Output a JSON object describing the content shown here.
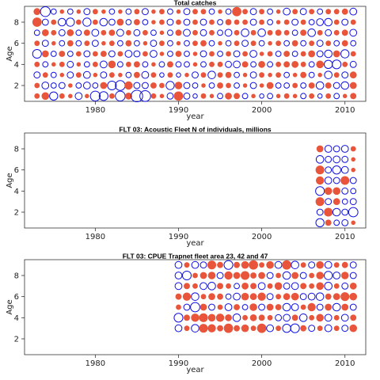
{
  "chart_data": [
    {
      "type": "scatter",
      "subtype": "bubble-residual",
      "title": "Total catches",
      "xlabel": "year",
      "ylabel": "Age",
      "xlim": [
        1971.5,
        2012.5
      ],
      "ylim": [
        0.5,
        9.5
      ],
      "xticks": [
        1980,
        1990,
        2000,
        2010
      ],
      "yticks": [
        2,
        4,
        6,
        8
      ],
      "positive_color": "#e8553a",
      "negative_color": "#1010e0",
      "year_start": 1973,
      "year_end": 2011,
      "ages": [
        1,
        2,
        3,
        4,
        5,
        6,
        7,
        8,
        9
      ],
      "residuals": [
        [
          0.3,
          0.6,
          -0.7,
          0.3,
          0.2,
          -0.5,
          0.2,
          -1.0,
          -0.8,
          0.3,
          -1.0,
          0.5,
          -1.4,
          -1.2,
          0.3,
          0.2,
          -0.4,
          0.9,
          -0.4,
          -0.2,
          0.3,
          0.2,
          -0.3,
          0.5,
          0.4,
          -0.3,
          0.2,
          -0.2,
          -0.3,
          0.2,
          0.3,
          0.2,
          -0.3,
          0.3,
          -0.2,
          0.3,
          -0.3,
          0.2,
          0.4
        ],
        [
          0.3,
          -0.5,
          -0.3,
          -0.4,
          0.2,
          -0.3,
          -0.5,
          -0.3,
          0.5,
          -0.8,
          -1.0,
          0.7,
          -0.4,
          -0.4,
          0.4,
          0.3,
          -0.7,
          0.6,
          -0.4,
          -0.3,
          0.2,
          -0.3,
          0.4,
          0.3,
          -0.3,
          0.2,
          -0.4,
          0.2,
          0.5,
          -0.3,
          -0.3,
          0.3,
          -0.3,
          0.4,
          -0.6,
          0.4,
          -0.4,
          -0.6,
          0.5
        ],
        [
          -0.4,
          0.3,
          -0.3,
          0.2,
          -0.4,
          0.3,
          -0.5,
          0.2,
          -0.4,
          0.3,
          0.2,
          -0.3,
          0.4,
          -0.5,
          0.3,
          -0.2,
          0.3,
          -0.2,
          0.2,
          -0.4,
          0.3,
          -0.6,
          0.3,
          0.4,
          -0.3,
          0.2,
          -0.4,
          0.3,
          0.2,
          0.3,
          -0.3,
          0.2,
          0.4,
          -0.3,
          0.2,
          -0.6,
          0.3,
          -0.4,
          0.5
        ],
        [
          0.3,
          -0.3,
          0.2,
          0.3,
          -0.4,
          0.2,
          -0.3,
          0.3,
          -0.5,
          0.6,
          -0.3,
          0.3,
          0.4,
          -0.3,
          0.2,
          -0.3,
          0.4,
          -0.3,
          -0.3,
          0.2,
          -0.3,
          0.3,
          0.3,
          -0.4,
          -0.5,
          0.4,
          -0.3,
          0.5,
          -0.3,
          0.3,
          0.4,
          0.5,
          0.3,
          -0.3,
          0.6,
          -0.7,
          -0.8,
          0.3,
          -0.4
        ],
        [
          -0.8,
          0.5,
          -0.3,
          0.4,
          -0.3,
          0.3,
          -0.4,
          0.3,
          0.4,
          -0.4,
          0.3,
          -0.5,
          -0.4,
          0.3,
          -0.5,
          0.2,
          -0.3,
          0.4,
          -0.3,
          0.2,
          -0.4,
          0.3,
          -0.3,
          0.3,
          -0.4,
          0.3,
          -0.5,
          0.2,
          0.3,
          -0.3,
          0.4,
          -0.3,
          0.3,
          0.5,
          -0.4,
          -0.6,
          0.5,
          -0.7,
          0.3
        ],
        [
          0.3,
          -0.4,
          0.2,
          -0.3,
          0.4,
          -0.3,
          0.3,
          -0.4,
          0.2,
          0.3,
          -0.3,
          0.4,
          -0.3,
          0.2,
          -0.4,
          0.3,
          -0.3,
          0.2,
          -0.3,
          0.3,
          0.4,
          -0.3,
          0.2,
          -0.3,
          0.3,
          -0.4,
          0.3,
          -0.3,
          0.2,
          0.3,
          -0.3,
          0.4,
          -0.3,
          0.3,
          -0.4,
          0.3,
          -0.3,
          0.4,
          -0.3
        ],
        [
          -0.3,
          0.5,
          0.3,
          -0.4,
          0.5,
          -0.3,
          0.4,
          -0.5,
          0.3,
          0.4,
          -0.5,
          0.3,
          -0.4,
          0.3,
          -0.3,
          0.2,
          -0.3,
          0.4,
          -0.5,
          0.3,
          -0.4,
          0.3,
          -0.3,
          -0.5,
          0.3,
          -0.6,
          0.3,
          -0.6,
          0.3,
          0.4,
          0.3,
          -0.3,
          0.4,
          -0.6,
          0.3,
          -0.4,
          0.3,
          0.4,
          -0.5
        ],
        [
          0.9,
          -0.4,
          0.3,
          -0.6,
          -0.7,
          0.3,
          -0.7,
          0.3,
          -0.6,
          -0.4,
          0.5,
          -0.3,
          0.4,
          -0.3,
          0.2,
          0.3,
          -0.4,
          0.3,
          -0.4,
          0.3,
          -0.4,
          0.3,
          -0.3,
          0.4,
          0.3,
          0.3,
          -0.4,
          0.3,
          -0.3,
          0.2,
          0.3,
          -0.4,
          0.3,
          -0.3,
          -0.5,
          -0.6,
          0.3,
          -0.4,
          0.3
        ],
        [
          0.5,
          -1.0,
          -0.3,
          0.2,
          -0.3,
          0.2,
          -0.4,
          0.3,
          0.2,
          -0.3,
          0.2,
          -0.3,
          0.3,
          -0.4,
          0.2,
          0.3,
          -0.3,
          0.2,
          -0.4,
          0.3,
          0.3,
          -0.3,
          0.2,
          -0.3,
          0.9,
          0.3,
          -0.4,
          0.3,
          -0.3,
          0.2,
          -0.5,
          0.3,
          -0.4,
          0.3,
          -0.3,
          0.3,
          0.3,
          0.4,
          -0.5
        ]
      ]
    },
    {
      "type": "scatter",
      "subtype": "bubble-residual",
      "title": "FLT 03: Acoustic Fleet  N of individuals, millions",
      "xlabel": "year",
      "ylabel": "Age",
      "xlim": [
        1971.5,
        2012.5
      ],
      "ylim": [
        0.5,
        9.5
      ],
      "xticks": [
        1980,
        1990,
        2000,
        2010
      ],
      "yticks": [
        2,
        4,
        6,
        8
      ],
      "positive_color": "#e8553a",
      "negative_color": "#1010e0",
      "year_start": 2007,
      "year_end": 2011,
      "ages": [
        1,
        2,
        3,
        4,
        5,
        6,
        7,
        8
      ],
      "residuals": [
        [
          -0.7,
          0.4,
          -0.3,
          -0.4,
          0.2
        ],
        [
          -0.4,
          0.8,
          -0.6,
          -0.4,
          -0.9
        ],
        [
          0.8,
          -0.4,
          0.5,
          -0.3,
          -0.4
        ],
        [
          -0.8,
          0.6,
          0.6,
          -0.4,
          -0.3
        ],
        [
          0.7,
          -0.5,
          -0.4,
          0.8,
          -0.4
        ],
        [
          0.8,
          -0.4,
          -0.7,
          -0.5,
          0.2
        ],
        [
          -0.6,
          -0.4,
          -0.5,
          -0.4,
          0.2
        ],
        [
          0.5,
          -0.5,
          -0.4,
          -0.5,
          0.3
        ]
      ]
    },
    {
      "type": "scatter",
      "subtype": "bubble-residual",
      "title": "FLT 03: CPUE Trapnet fleet area 23, 42 and 47",
      "xlabel": "year",
      "ylabel": "Age",
      "xlim": [
        1971.5,
        2012.5
      ],
      "ylim": [
        0.5,
        9.5
      ],
      "xticks": [
        1980,
        1990,
        2000,
        2010
      ],
      "yticks": [
        2,
        4,
        6,
        8
      ],
      "positive_color": "#e8553a",
      "negative_color": "#1010e0",
      "year_start": 1990,
      "year_end": 2011,
      "ages": [
        3,
        4,
        5,
        6,
        7,
        8,
        9
      ],
      "residuals": [
        [
          -0.5,
          0.3,
          -0.6,
          0.8,
          0.7,
          0.4,
          0.9,
          0.4,
          0.6,
          0.3,
          0.9,
          -0.5,
          0.3,
          -0.7,
          -0.8,
          0.4,
          -0.4,
          0.3,
          -0.5,
          0.3,
          -0.4,
          0.6
        ],
        [
          -0.8,
          0.4,
          0.7,
          0.8,
          0.6,
          0.7,
          0.5,
          -0.6,
          0.3,
          0.5,
          0.4,
          0.3,
          -0.4,
          -0.5,
          0.4,
          -0.6,
          0.3,
          0.6,
          -0.5,
          0.3,
          -0.5,
          0.4
        ],
        [
          0.3,
          -0.4,
          -0.9,
          0.5,
          -0.4,
          0.3,
          -0.5,
          0.4,
          -0.3,
          0.6,
          -0.4,
          0.5,
          0.4,
          -0.6,
          -0.5,
          0.3,
          0.7,
          -0.4,
          0.5,
          -0.6,
          0.5,
          -0.4
        ],
        [
          0.4,
          0.7,
          -0.6,
          0.3,
          0.5,
          0.4,
          -0.3,
          -0.5,
          0.6,
          0.5,
          0.7,
          -0.4,
          0.3,
          0.5,
          0.6,
          -0.4,
          -0.5,
          -0.6,
          0.4,
          0.5,
          0.8,
          0.6
        ],
        [
          -0.5,
          0.4,
          0.3,
          -0.5,
          -0.6,
          0.4,
          0.3,
          -0.3,
          0.5,
          0.4,
          -0.5,
          0.3,
          0.6,
          -0.4,
          -0.5,
          0.4,
          0.3,
          0.6,
          -0.6,
          0.3,
          -0.4,
          0.5
        ],
        [
          -0.5,
          -0.8,
          0.3,
          0.5,
          0.6,
          -0.4,
          0.7,
          0.5,
          0.8,
          0.4,
          0.5,
          -0.4,
          0.3,
          -0.6,
          0.5,
          -0.4,
          0.3,
          0.6,
          -0.7,
          -0.5,
          0.6,
          -0.4
        ],
        [
          -0.5,
          0.3,
          -0.5,
          -0.4,
          0.8,
          0.4,
          -0.8,
          0.4,
          0.6,
          0.9,
          0.3,
          0.6,
          -0.5,
          0.9,
          -0.6,
          0.3,
          -0.4,
          0.6,
          -0.5,
          0.3,
          0.4,
          -0.4
        ]
      ]
    }
  ]
}
